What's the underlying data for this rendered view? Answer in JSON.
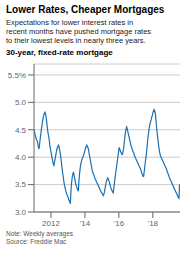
{
  "chart_data": {
    "type": "line",
    "title": "Lower Rates, Cheaper Mortgages",
    "subtitle": "Expectations for lower interest rates in\nrecent months have pushed mortgage rates\nto their lowest levels in nearly three years.",
    "annotations": [
      "30-year, fixed-rate mortgage",
      "Note: Weekly averages\nSource: Freddie Mac"
    ],
    "color": "#1a6faf",
    "grid": true,
    "xlim": [
      2011.0,
      2019.6
    ],
    "xticks": [
      2012,
      {
        "value": 2014,
        "label": "'14"
      },
      {
        "value": 2016,
        "label": "'16"
      },
      {
        "value": 2018,
        "label": "'18"
      }
    ],
    "ylim": [
      3.0,
      5.7
    ],
    "yticks": [
      {
        "value": 3.0,
        "label": "3.0"
      },
      3.5,
      {
        "value": 4.0,
        "label": "4.0"
      },
      4.5,
      {
        "value": 5.0,
        "label": "5.0"
      },
      {
        "value": 5.5,
        "label": "5.5%"
      }
    ],
    "x": [
      2011.0,
      2011.0294,
      2011.0587,
      2011.0881,
      2011.1174,
      2011.1468,
      2011.1761,
      2011.2055,
      2011.2348,
      2011.2642,
      2011.2935,
      2011.3229,
      2011.3522,
      2011.3816,
      2011.4109,
      2011.4403,
      2011.4696,
      2011.499,
      2011.5283,
      2011.5577,
      2011.587,
      2011.6164,
      2011.6457,
      2011.6751,
      2011.7044,
      2011.7338,
      2011.7631,
      2011.7925,
      2011.8218,
      2011.8512,
      2011.8805,
      2011.9099,
      2011.9392,
      2011.9686,
      2011.998,
      2012.0273,
      2012.0567,
      2012.086,
      2012.1154,
      2012.1447,
      2012.1741,
      2012.2034,
      2012.2328,
      2012.2621,
      2012.2915,
      2012.3208,
      2012.3502,
      2012.3795,
      2012.4089,
      2012.4382,
      2012.4676,
      2012.4969,
      2012.5263,
      2012.5556,
      2012.585,
      2012.6143,
      2012.6437,
      2012.673,
      2012.7024,
      2012.7317,
      2012.7611,
      2012.7904,
      2012.8198,
      2012.8491,
      2012.8785,
      2012.9078,
      2012.9372,
      2012.9666,
      2012.9959,
      2013.0253,
      2013.0546,
      2013.084,
      2013.1133,
      2013.1427,
      2013.172,
      2013.2014,
      2013.2307,
      2013.2601,
      2013.2894,
      2013.3188,
      2013.3481,
      2013.3775,
      2013.4068,
      2013.4362,
      2013.4655,
      2013.4949,
      2013.5242,
      2013.5536,
      2013.5829,
      2013.6123,
      2013.6416,
      2013.671,
      2013.7003,
      2013.7297,
      2013.759,
      2013.7884,
      2013.8177,
      2013.8471,
      2013.8765,
      2013.9058,
      2013.9352,
      2013.9645,
      2013.9939,
      2014.0232,
      2014.0526,
      2014.0819,
      2014.1113,
      2014.1406,
      2014.17,
      2014.1993,
      2014.2287,
      2014.258,
      2014.2874,
      2014.3167,
      2014.3461,
      2014.3754,
      2014.4048,
      2014.4341,
      2014.4635,
      2014.4928,
      2014.5222,
      2014.5515,
      2014.5809,
      2014.6102,
      2014.6396,
      2014.6689,
      2014.6983,
      2014.7276,
      2014.757,
      2014.7863,
      2014.8157,
      2014.8451,
      2014.8744,
      2014.9038,
      2014.9331,
      2014.9625,
      2014.9918,
      2015.0212,
      2015.0505,
      2015.0799,
      2015.1092,
      2015.1386,
      2015.1679,
      2015.1973,
      2015.2266,
      2015.256,
      2015.2853,
      2015.3147,
      2015.344,
      2015.3734,
      2015.4027,
      2015.4321,
      2015.4614,
      2015.4908,
      2015.5201,
      2015.5495,
      2015.5788,
      2015.6082,
      2015.6375,
      2015.6669,
      2015.6962,
      2015.7256,
      2015.7549,
      2015.7843,
      2015.8137,
      2015.843,
      2015.8724,
      2015.9017,
      2015.9311,
      2015.9604,
      2015.9898,
      2016.0191,
      2016.0485,
      2016.0778,
      2016.1072,
      2016.1365,
      2016.1659,
      2016.1952,
      2016.2246,
      2016.2539,
      2016.2833,
      2016.3126,
      2016.342,
      2016.3713,
      2016.4007,
      2016.43,
      2016.4594,
      2016.4887,
      2016.5181,
      2016.5474,
      2016.5768,
      2016.6061,
      2016.6355,
      2016.6648,
      2016.6942,
      2016.7235,
      2016.7529,
      2016.7823,
      2016.8116,
      2016.841,
      2016.8703,
      2016.8997,
      2016.929,
      2016.9584,
      2016.9877,
      2017.0171,
      2017.0464,
      2017.0758,
      2017.1051,
      2017.1345,
      2017.1638,
      2017.1932,
      2017.2225,
      2017.2519,
      2017.2812,
      2017.3106,
      2017.3399,
      2017.3693,
      2017.3986,
      2017.428,
      2017.4573,
      2017.4867,
      2017.516,
      2017.5454,
      2017.5747,
      2017.6041,
      2017.6334,
      2017.6628,
      2017.6922,
      2017.7215,
      2017.7509,
      2017.7802,
      2017.8096,
      2017.8389,
      2017.8683,
      2017.8976,
      2017.927,
      2017.9563,
      2017.9857,
      2018.015,
      2018.0444,
      2018.0737,
      2018.1031,
      2018.1324,
      2018.1618,
      2018.1911,
      2018.2205,
      2018.2498,
      2018.2792,
      2018.3085,
      2018.3379,
      2018.3672,
      2018.3966,
      2018.4259,
      2018.4553,
      2018.4846,
      2018.514,
      2018.5433,
      2018.5727,
      2018.602,
      2018.6314,
      2018.6608,
      2018.6901,
      2018.7195,
      2018.7488,
      2018.7782,
      2018.8075,
      2018.8369,
      2018.8662,
      2018.8956,
      2018.9249,
      2018.9543,
      2018.9836,
      2019.013,
      2019.0423,
      2019.0717,
      2019.101,
      2019.1304,
      2019.1597,
      2019.1891,
      2019.2184,
      2019.2478,
      2019.2771,
      2019.3065,
      2019.3358,
      2019.3652,
      2019.3945,
      2019.4239,
      2019.4532,
      2019.4826,
      2019.5119,
      2019.5413,
      2019.5706,
      2019.6
    ],
    "values": [
      4.5,
      4.45,
      4.42,
      4.38,
      4.35,
      4.32,
      4.3,
      4.28,
      4.22,
      4.18,
      4.15,
      4.22,
      4.3,
      4.38,
      4.45,
      4.52,
      4.58,
      4.65,
      4.7,
      4.75,
      4.78,
      4.8,
      4.82,
      4.8,
      4.75,
      4.68,
      4.6,
      4.52,
      4.45,
      4.4,
      4.35,
      4.28,
      4.2,
      4.15,
      4.1,
      4.05,
      4.0,
      3.95,
      3.9,
      3.87,
      3.85,
      3.9,
      3.95,
      4.0,
      4.05,
      4.1,
      4.15,
      4.18,
      4.2,
      4.22,
      4.2,
      4.15,
      4.1,
      4.05,
      3.98,
      3.9,
      3.82,
      3.75,
      3.68,
      3.62,
      3.55,
      3.5,
      3.45,
      3.42,
      3.38,
      3.35,
      3.32,
      3.3,
      3.28,
      3.25,
      3.22,
      3.2,
      3.18,
      3.15,
      3.35,
      3.5,
      3.58,
      3.65,
      3.7,
      3.72,
      3.7,
      3.65,
      3.6,
      3.55,
      3.5,
      3.48,
      3.45,
      3.42,
      3.4,
      3.38,
      3.55,
      3.65,
      3.75,
      3.82,
      3.88,
      3.92,
      3.95,
      3.98,
      4.0,
      4.02,
      4.05,
      4.08,
      4.12,
      4.15,
      4.18,
      4.2,
      4.22,
      4.2,
      4.18,
      4.15,
      4.1,
      4.05,
      4.0,
      3.95,
      3.9,
      3.85,
      3.8,
      3.75,
      3.72,
      3.7,
      3.68,
      3.65,
      3.62,
      3.6,
      3.58,
      3.56,
      3.54,
      3.52,
      3.5,
      3.48,
      3.46,
      3.44,
      3.42,
      3.4,
      3.38,
      3.36,
      3.35,
      3.33,
      3.32,
      3.3,
      3.32,
      3.35,
      3.4,
      3.45,
      3.5,
      3.55,
      3.58,
      3.6,
      3.62,
      3.6,
      3.58,
      3.55,
      3.52,
      3.48,
      3.45,
      3.42,
      3.4,
      3.38,
      3.36,
      3.35,
      3.42,
      3.5,
      3.58,
      3.65,
      3.72,
      3.78,
      3.85,
      3.92,
      3.98,
      4.05,
      4.12,
      4.18,
      4.15,
      4.12,
      4.1,
      4.08,
      4.06,
      4.05,
      4.08,
      4.12,
      4.18,
      4.25,
      4.35,
      4.42,
      4.48,
      4.52,
      4.55,
      4.52,
      4.48,
      4.44,
      4.4,
      4.36,
      4.32,
      4.28,
      4.24,
      4.2,
      4.18,
      4.15,
      4.12,
      4.1,
      4.08,
      4.05,
      4.02,
      4.0,
      3.98,
      3.96,
      3.94,
      3.92,
      3.9,
      3.88,
      3.86,
      3.84,
      3.82,
      3.8,
      3.78,
      3.75,
      3.72,
      3.7,
      3.68,
      3.65,
      3.65,
      3.72,
      3.8,
      3.88,
      3.95,
      4.02,
      4.1,
      4.2,
      4.3,
      4.38,
      4.45,
      4.52,
      4.58,
      4.62,
      4.65,
      4.68,
      4.72,
      4.75,
      4.78,
      4.82,
      4.85,
      4.87,
      4.85,
      4.82,
      4.75,
      4.65,
      4.55,
      4.45,
      4.38,
      4.3,
      4.22,
      4.15,
      4.1,
      4.05,
      4.02,
      4.0,
      3.98,
      3.96,
      3.94,
      3.92,
      3.9,
      3.88,
      3.86,
      3.84,
      3.82,
      3.8,
      3.78,
      3.75,
      3.72,
      3.7,
      3.68,
      3.65,
      3.62,
      3.6,
      3.58,
      3.56,
      3.54,
      3.52,
      3.5,
      3.48,
      3.46,
      3.44,
      3.42,
      3.4,
      3.38,
      3.36,
      3.34,
      3.32,
      3.3,
      3.28,
      3.26,
      3.25,
      3.5,
      3.48
    ]
  }
}
